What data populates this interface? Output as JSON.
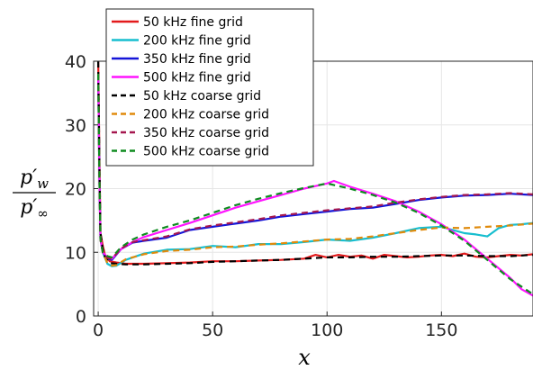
{
  "chart_data": {
    "type": "line",
    "title": "",
    "xlabel": "x",
    "ylabel": {
      "numerator": "p′",
      "numerator_sub": "w",
      "denominator": "p′",
      "denominator_sub": "∞"
    },
    "xlim": [
      -2,
      190
    ],
    "ylim": [
      0,
      40
    ],
    "xticks": [
      0,
      50,
      100,
      150
    ],
    "yticks": [
      0,
      10,
      20,
      30,
      40
    ],
    "xtick_labels": [
      "0",
      "50",
      "100",
      "150"
    ],
    "ytick_labels": [
      "0",
      "10",
      "20",
      "30",
      "40"
    ],
    "grid": true,
    "legend_position": "top-left",
    "series": [
      {
        "name": "50 kHz fine grid",
        "color": "#e31a1c",
        "dash": "solid",
        "x": [
          0,
          0.5,
          1,
          2,
          3,
          5,
          8,
          12,
          20,
          30,
          40,
          50,
          60,
          70,
          80,
          90,
          95,
          100,
          105,
          110,
          115,
          120,
          125,
          130,
          135,
          140,
          145,
          150,
          155,
          160,
          165,
          170,
          175,
          180,
          185,
          190
        ],
        "y": [
          40,
          25,
          13,
          11,
          9.5,
          8.6,
          8.4,
          8.2,
          8.2,
          8.3,
          8.4,
          8.6,
          8.6,
          8.7,
          8.8,
          9.0,
          9.6,
          9.2,
          9.6,
          9.3,
          9.5,
          9.0,
          9.6,
          9.4,
          9.2,
          9.3,
          9.5,
          9.6,
          9.4,
          9.8,
          9.3,
          9.2,
          9.4,
          9.6,
          9.5,
          9.7
        ]
      },
      {
        "name": "200 kHz fine grid",
        "color": "#17becf",
        "dash": "solid",
        "x": [
          0,
          0.5,
          1,
          2,
          4,
          6,
          8,
          12,
          20,
          30,
          40,
          50,
          60,
          70,
          80,
          90,
          100,
          110,
          120,
          130,
          140,
          150,
          155,
          160,
          165,
          170,
          175,
          180,
          185,
          190
        ],
        "y": [
          38,
          22,
          12,
          10,
          8.2,
          7.8,
          7.9,
          8.8,
          9.8,
          10.4,
          10.5,
          11.0,
          10.8,
          11.3,
          11.3,
          11.6,
          12.0,
          11.8,
          12.3,
          13.0,
          13.8,
          14.0,
          13.5,
          13.0,
          12.8,
          12.5,
          13.8,
          14.3,
          14.4,
          14.6
        ]
      },
      {
        "name": "350 kHz fine grid",
        "color": "#1515d8",
        "dash": "solid",
        "x": [
          0,
          0.5,
          1,
          2,
          4,
          6,
          10,
          15,
          20,
          30,
          40,
          50,
          60,
          70,
          80,
          90,
          100,
          110,
          120,
          130,
          140,
          150,
          160,
          170,
          180,
          190
        ],
        "y": [
          38,
          22,
          12,
          10,
          9.0,
          8.8,
          10.5,
          11.5,
          11.8,
          12.3,
          13.5,
          14.0,
          14.5,
          15.0,
          15.6,
          16.0,
          16.4,
          16.8,
          17.0,
          17.6,
          18.2,
          18.6,
          18.9,
          19.0,
          19.2,
          19.0
        ]
      },
      {
        "name": "500 kHz fine grid",
        "color": "#ff14ff",
        "dash": "solid",
        "x": [
          0,
          0.5,
          1,
          2,
          4,
          6,
          10,
          15,
          20,
          30,
          40,
          50,
          60,
          70,
          80,
          90,
          100,
          103,
          110,
          120,
          130,
          140,
          150,
          160,
          170,
          180,
          185,
          190
        ],
        "y": [
          38,
          22,
          12,
          10,
          9.2,
          9.0,
          10.5,
          11.6,
          12.4,
          13.5,
          14.6,
          15.8,
          17.0,
          18.0,
          19.0,
          20.0,
          20.8,
          21.2,
          20.3,
          19.2,
          18.0,
          16.4,
          14.4,
          12.0,
          9.0,
          6.0,
          4.2,
          3.2
        ]
      },
      {
        "name": "50 kHz coarse grid",
        "color": "#000000",
        "dash": "dashed",
        "x": [
          0,
          0.5,
          1,
          2,
          3,
          5,
          8,
          12,
          20,
          30,
          40,
          50,
          60,
          70,
          80,
          90,
          100,
          110,
          120,
          130,
          140,
          150,
          160,
          170,
          180,
          190
        ],
        "y": [
          40,
          24,
          13,
          10.5,
          9.2,
          8.3,
          8.2,
          8.1,
          8.1,
          8.2,
          8.3,
          8.5,
          8.6,
          8.7,
          8.8,
          9.0,
          9.2,
          9.2,
          9.3,
          9.3,
          9.4,
          9.5,
          9.5,
          9.4,
          9.4,
          9.6
        ]
      },
      {
        "name": "200 kHz coarse grid",
        "color": "#e08a0b",
        "dash": "dashed",
        "x": [
          0,
          0.5,
          1,
          2,
          4,
          6,
          8,
          12,
          20,
          30,
          40,
          50,
          60,
          70,
          80,
          90,
          100,
          110,
          120,
          130,
          140,
          150,
          160,
          170,
          180,
          190
        ],
        "y": [
          38,
          22,
          12,
          10,
          8.3,
          7.9,
          8.0,
          8.9,
          9.7,
          10.2,
          10.4,
          10.8,
          10.9,
          11.2,
          11.4,
          11.7,
          12.0,
          12.1,
          12.5,
          13.0,
          13.5,
          13.9,
          13.8,
          14.0,
          14.2,
          14.5
        ]
      },
      {
        "name": "350 kHz coarse grid",
        "color": "#a5174f",
        "dash": "dashed",
        "x": [
          0,
          0.5,
          1,
          2,
          4,
          6,
          10,
          15,
          20,
          30,
          40,
          50,
          60,
          70,
          80,
          90,
          100,
          110,
          120,
          130,
          140,
          150,
          160,
          170,
          180,
          190
        ],
        "y": [
          38,
          22,
          12,
          10,
          9.1,
          9.0,
          10.6,
          11.6,
          11.9,
          12.5,
          13.6,
          14.2,
          14.7,
          15.2,
          15.8,
          16.2,
          16.6,
          16.9,
          17.2,
          17.8,
          18.3,
          18.7,
          19.0,
          19.1,
          19.3,
          19.1
        ]
      },
      {
        "name": "500 kHz coarse grid",
        "color": "#0e8b1f",
        "dash": "dashed",
        "x": [
          0,
          0.5,
          1,
          2,
          4,
          6,
          10,
          15,
          20,
          30,
          40,
          50,
          60,
          70,
          80,
          90,
          100,
          110,
          120,
          130,
          140,
          150,
          160,
          170,
          180,
          190
        ],
        "y": [
          38,
          22,
          12,
          10,
          9.4,
          9.2,
          10.8,
          12.0,
          12.8,
          14.0,
          15.0,
          16.2,
          17.4,
          18.4,
          19.3,
          20.1,
          20.8,
          20.0,
          19.0,
          17.8,
          16.2,
          14.2,
          11.8,
          8.8,
          5.8,
          3.4
        ]
      }
    ]
  }
}
